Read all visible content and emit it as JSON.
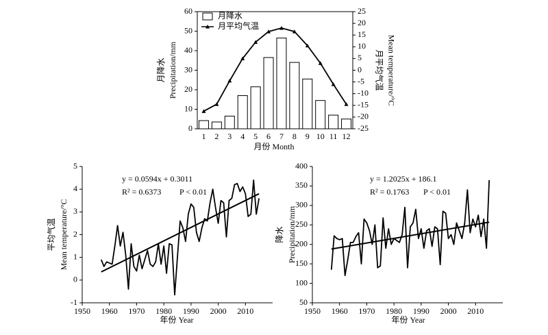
{
  "chart_data": [
    {
      "type": "bar",
      "xlabel": "月份 Month",
      "ylabel": [
        "月降水",
        "Precipitation/mm"
      ],
      "y2label": [
        "月平均气温",
        "Mean temperature/°C"
      ],
      "categories": [
        "1",
        "2",
        "3",
        "4",
        "5",
        "6",
        "7",
        "8",
        "9",
        "10",
        "11",
        "12"
      ],
      "series": [
        {
          "name": "月降水",
          "color": "#ffffff",
          "values": [
            4.2,
            3.5,
            6.5,
            17,
            21.5,
            36.5,
            46.5,
            34,
            25.5,
            14.5,
            7,
            5
          ]
        },
        {
          "name": "月平均气温",
          "color": "#000000",
          "axis": "y2",
          "values": [
            -17.5,
            -14.5,
            -4.5,
            5,
            12,
            16.5,
            18,
            16.5,
            10.5,
            3,
            -6,
            -14.5
          ]
        }
      ],
      "ylim": [
        0,
        60
      ],
      "yticks": [
        0,
        10,
        20,
        30,
        40,
        50,
        60
      ],
      "y2lim": [
        -25,
        25
      ],
      "y2ticks": [
        -25,
        -20,
        -15,
        -10,
        -5,
        0,
        5,
        10,
        15,
        20,
        25
      ],
      "legend": "upper left"
    },
    {
      "type": "line",
      "xlabel": "年份 Year",
      "ylabel": [
        "平均气温",
        "Mean temperature/°C"
      ],
      "annotations": [
        "y = 0.0594x + 0.3011",
        "R² = 0.6373",
        "P < 0.01"
      ],
      "x": [
        1957,
        1958,
        1959,
        1960,
        1961,
        1962,
        1963,
        1964,
        1965,
        1966,
        1967,
        1968,
        1969,
        1970,
        1971,
        1972,
        1973,
        1974,
        1975,
        1976,
        1977,
        1978,
        1979,
        1980,
        1981,
        1982,
        1983,
        1984,
        1985,
        1986,
        1987,
        1988,
        1989,
        1990,
        1991,
        1992,
        1993,
        1994,
        1995,
        1996,
        1997,
        1998,
        1999,
        2000,
        2001,
        2002,
        2003,
        2004,
        2005,
        2006,
        2007,
        2008,
        2009,
        2010,
        2011,
        2012,
        2013,
        2014,
        2015
      ],
      "series": [
        {
          "color": "#000000",
          "values": [
            0.9,
            0.6,
            0.8,
            0.75,
            0.7,
            1.5,
            2.4,
            1.5,
            2.1,
            1.1,
            -0.4,
            1.6,
            0.6,
            0.4,
            1.1,
            0.5,
            0.9,
            1.3,
            0.7,
            0.6,
            0.8,
            1.6,
            0.7,
            1.5,
            0.3,
            1.6,
            1.55,
            -0.65,
            1.0,
            2.6,
            2.3,
            1.7,
            2.9,
            3.35,
            3.2,
            2.1,
            1.7,
            2.3,
            2.7,
            2.6,
            3.4,
            4.0,
            3.2,
            2.5,
            3.5,
            3.4,
            1.9,
            3.5,
            3.6,
            4.2,
            4.25,
            3.9,
            4.1,
            3.8,
            2.8,
            2.9,
            4.4,
            2.9,
            3.6
          ]
        }
      ],
      "trend": {
        "color": "#000000",
        "x": [
          1957,
          2015
        ],
        "values": [
          0.36,
          3.8
        ]
      },
      "xlim": [
        1950,
        2020
      ],
      "xticks": [
        1950,
        1960,
        1970,
        1980,
        1990,
        2000,
        2010
      ],
      "ylim": [
        -1,
        5
      ],
      "yticks": [
        -1,
        0,
        1,
        2,
        3,
        4,
        5
      ]
    },
    {
      "type": "line",
      "xlabel": "年份 Year",
      "ylabel": [
        "降水",
        "Precipitation/mm"
      ],
      "annotations": [
        "y = 1.2025x + 186.1",
        "R² = 0.1763",
        "P < 0.01"
      ],
      "x": [
        1957,
        1958,
        1959,
        1960,
        1961,
        1962,
        1963,
        1964,
        1965,
        1966,
        1967,
        1968,
        1969,
        1970,
        1971,
        1972,
        1973,
        1974,
        1975,
        1976,
        1977,
        1978,
        1979,
        1980,
        1981,
        1982,
        1983,
        1984,
        1985,
        1986,
        1987,
        1988,
        1989,
        1990,
        1991,
        1992,
        1993,
        1994,
        1995,
        1996,
        1997,
        1998,
        1999,
        2000,
        2001,
        2002,
        2003,
        2004,
        2005,
        2006,
        2007,
        2008,
        2009,
        2010,
        2011,
        2012,
        2013,
        2014,
        2015
      ],
      "series": [
        {
          "color": "#000000",
          "values": [
            135,
            222,
            215,
            212,
            215,
            120,
            160,
            205,
            205,
            220,
            230,
            150,
            265,
            255,
            235,
            200,
            250,
            140,
            145,
            268,
            190,
            240,
            200,
            215,
            210,
            205,
            225,
            295,
            140,
            245,
            255,
            290,
            215,
            240,
            190,
            235,
            240,
            195,
            245,
            240,
            148,
            285,
            280,
            215,
            225,
            200,
            255,
            235,
            215,
            255,
            340,
            230,
            265,
            245,
            275,
            220,
            265,
            190,
            365
          ]
        }
      ],
      "trend": {
        "color": "#000000",
        "x": [
          1957,
          2015
        ],
        "values": [
          188,
          257
        ]
      },
      "xlim": [
        1950,
        2020
      ],
      "xticks": [
        1950,
        1960,
        1970,
        1980,
        1990,
        2000,
        2010
      ],
      "ylim": [
        50,
        400
      ],
      "yticks": [
        50,
        100,
        150,
        200,
        250,
        300,
        350,
        400
      ]
    }
  ]
}
